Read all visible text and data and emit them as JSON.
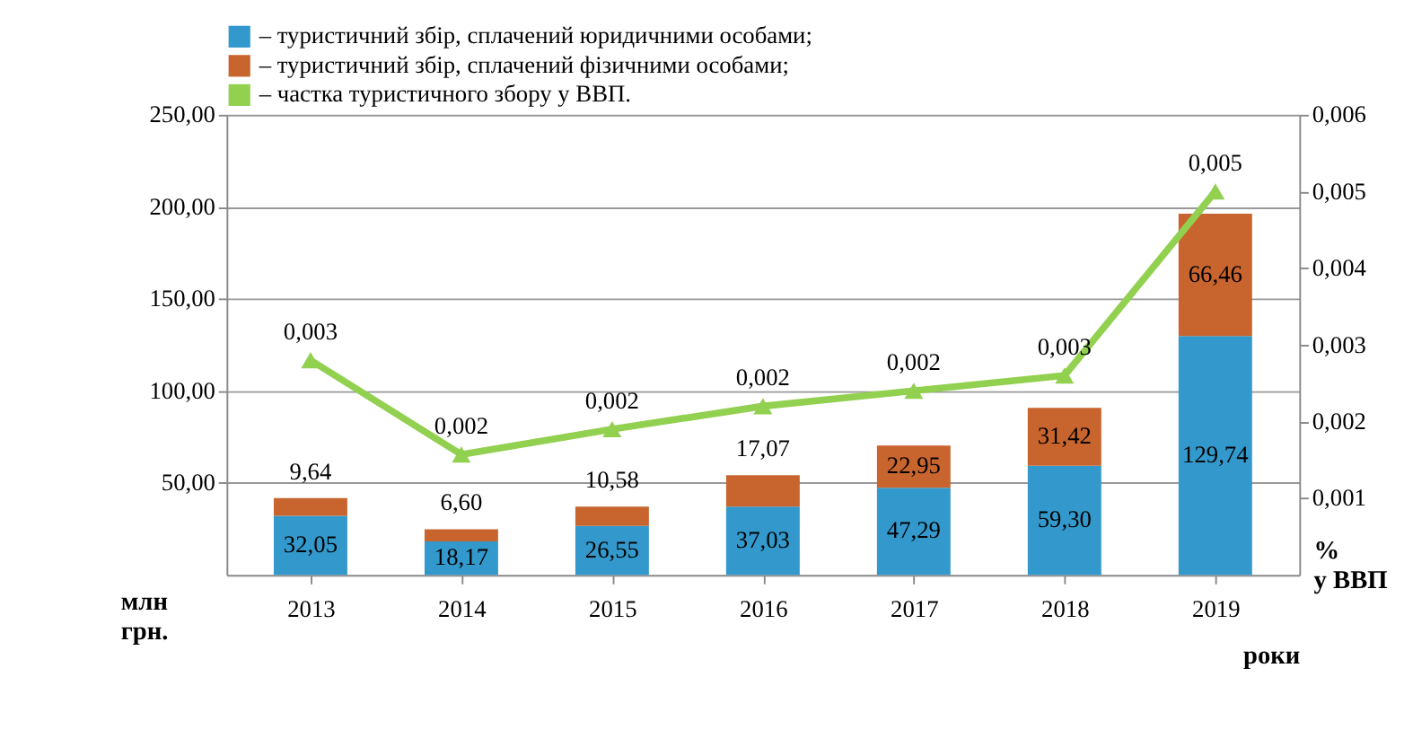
{
  "chart_data": {
    "type": "bar",
    "stacked": true,
    "categories": [
      "2013",
      "2014",
      "2015",
      "2016",
      "2017",
      "2018",
      "2019"
    ],
    "xlabel": "роки",
    "ylabel": "млн грн.",
    "y2label": "% у ВВП",
    "series": [
      {
        "name": "– туристичний збір, сплачений юридичними особами;",
        "color": "#3399cc",
        "values": [
          32.05,
          18.17,
          26.55,
          37.03,
          47.29,
          59.3,
          129.74
        ],
        "value_labels": [
          "32,05",
          "18,17",
          "26,55",
          "37,03",
          "47,29",
          "59,30",
          "129,74"
        ]
      },
      {
        "name": "– туристичний збір, сплачений фізичними особами;",
        "color": "#c8642e",
        "values": [
          9.64,
          6.6,
          10.58,
          17.07,
          22.95,
          31.42,
          66.46
        ],
        "value_labels": [
          "9,64",
          "6,60",
          "10,58",
          "17,07",
          "22,95",
          "31,42",
          "66,46"
        ]
      },
      {
        "name": "– частка туристичного збору у ВВП.",
        "type": "line",
        "axis": "y2",
        "color": "#92d050",
        "marker": "triangle",
        "values": [
          0.0028,
          0.00157,
          0.0019,
          0.0022,
          0.0024,
          0.0026,
          0.005
        ],
        "value_labels": [
          "0,003",
          "0,002",
          "0,002",
          "0,002",
          "0,002",
          "0,003",
          "0,005"
        ]
      }
    ],
    "ylim": [
      0,
      250
    ],
    "yticks": [
      {
        "value": 50,
        "label": "50,00"
      },
      {
        "value": 100,
        "label": "100,00"
      },
      {
        "value": 150,
        "label": "150,00"
      },
      {
        "value": 200,
        "label": "200,00"
      },
      {
        "value": 250,
        "label": "250,00"
      }
    ],
    "y2lim": [
      0,
      0.006
    ],
    "y2ticks": [
      {
        "value": 0.001,
        "label": "0,001"
      },
      {
        "value": 0.002,
        "label": "0,002"
      },
      {
        "value": 0.003,
        "label": "0,003"
      },
      {
        "value": 0.004,
        "label": "0,004"
      },
      {
        "value": 0.005,
        "label": "0,005"
      },
      {
        "value": 0.006,
        "label": "0,006"
      }
    ],
    "grid": "y",
    "legend": "top"
  }
}
